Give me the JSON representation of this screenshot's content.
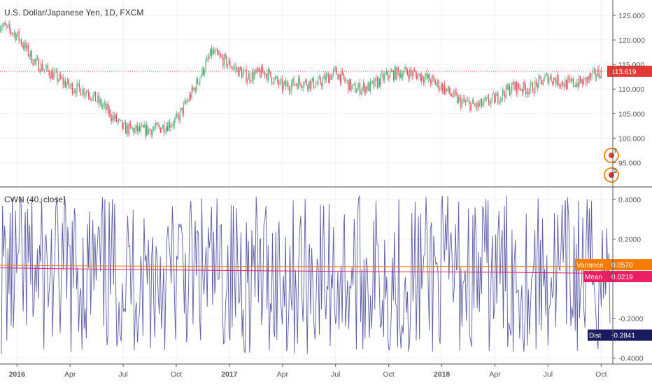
{
  "chart_data": [
    {
      "type": "candlestick",
      "title": "U.S. Dollar/Japanese Yen, 1D, FXCM",
      "y_ticks": [
        "125.000",
        "120.000",
        "115.000",
        "110.000",
        "105.000",
        "100.000",
        "95.000"
      ],
      "y_tick_values": [
        125,
        120,
        115,
        110,
        105,
        100,
        95
      ],
      "ylim": [
        91.5,
        127
      ],
      "last_price": 113.619,
      "last_price_label": "113.619",
      "colors": {
        "up": "#53b987",
        "down": "#eb4d5c",
        "price_line": "#e53935"
      },
      "flags": [
        {
          "name": "us-flag-icon",
          "count": "7"
        },
        {
          "name": "jp-flag-icon",
          "count": "2"
        }
      ],
      "x": [
        "2015-12",
        "2016-01",
        "2016-02",
        "2016-03",
        "2016-04",
        "2016-05",
        "2016-06",
        "2016-07",
        "2016-08",
        "2016-09",
        "2016-10",
        "2016-11",
        "2016-12",
        "2017-01",
        "2017-02",
        "2017-03",
        "2017-04",
        "2017-05",
        "2017-06",
        "2017-07",
        "2017-08",
        "2017-09",
        "2017-10",
        "2017-11",
        "2017-12",
        "2018-01",
        "2018-02",
        "2018-03",
        "2018-04",
        "2018-05",
        "2018-06",
        "2018-07",
        "2018-08",
        "2018-09",
        "2018-10"
      ],
      "close_approx": [
        123.2,
        121.0,
        115.5,
        113.0,
        110.5,
        109.5,
        106.0,
        102.0,
        101.5,
        102.0,
        103.5,
        110.0,
        117.5,
        115.0,
        112.5,
        113.5,
        110.5,
        111.5,
        111.0,
        113.5,
        110.0,
        110.5,
        113.0,
        113.5,
        112.5,
        110.5,
        107.5,
        106.5,
        108.0,
        110.5,
        110.0,
        112.5,
        111.0,
        111.5,
        113.619
      ]
    },
    {
      "type": "line",
      "title": "CWN (40, close)",
      "y_ticks": [
        "0.4000",
        "0.2000",
        "-0.2000",
        "-0.4000"
      ],
      "y_tick_values": [
        0.4,
        0.2,
        -0.2,
        -0.4
      ],
      "ylim": [
        -0.43,
        0.46
      ],
      "series": [
        {
          "name": "Variance",
          "value": 0.057,
          "value_label": "0.0570",
          "color": "#f57c00"
        },
        {
          "name": "Mean",
          "value": 0.0219,
          "value_label": "0.0219",
          "color": "#e91e63"
        },
        {
          "name": "Dist",
          "value": -0.2841,
          "value_label": "-0.2841",
          "color": "#1a1a5e"
        }
      ],
      "line_color": "#5c5ca8",
      "amplitude_range": [
        -0.38,
        0.42
      ]
    }
  ],
  "x_axis": {
    "ticks": [
      "2016",
      "Apr",
      "Jul",
      "Oct",
      "2017",
      "Apr",
      "Jul",
      "Oct",
      "2018",
      "Apr",
      "Jul",
      "Oct"
    ],
    "bold": [
      true,
      false,
      false,
      false,
      true,
      false,
      false,
      false,
      true,
      false,
      false,
      false
    ],
    "tick_dates": [
      "2016-01",
      "2016-04",
      "2016-07",
      "2016-10",
      "2017-01",
      "2017-04",
      "2017-07",
      "2017-10",
      "2018-01",
      "2018-04",
      "2018-07",
      "2018-10"
    ]
  }
}
